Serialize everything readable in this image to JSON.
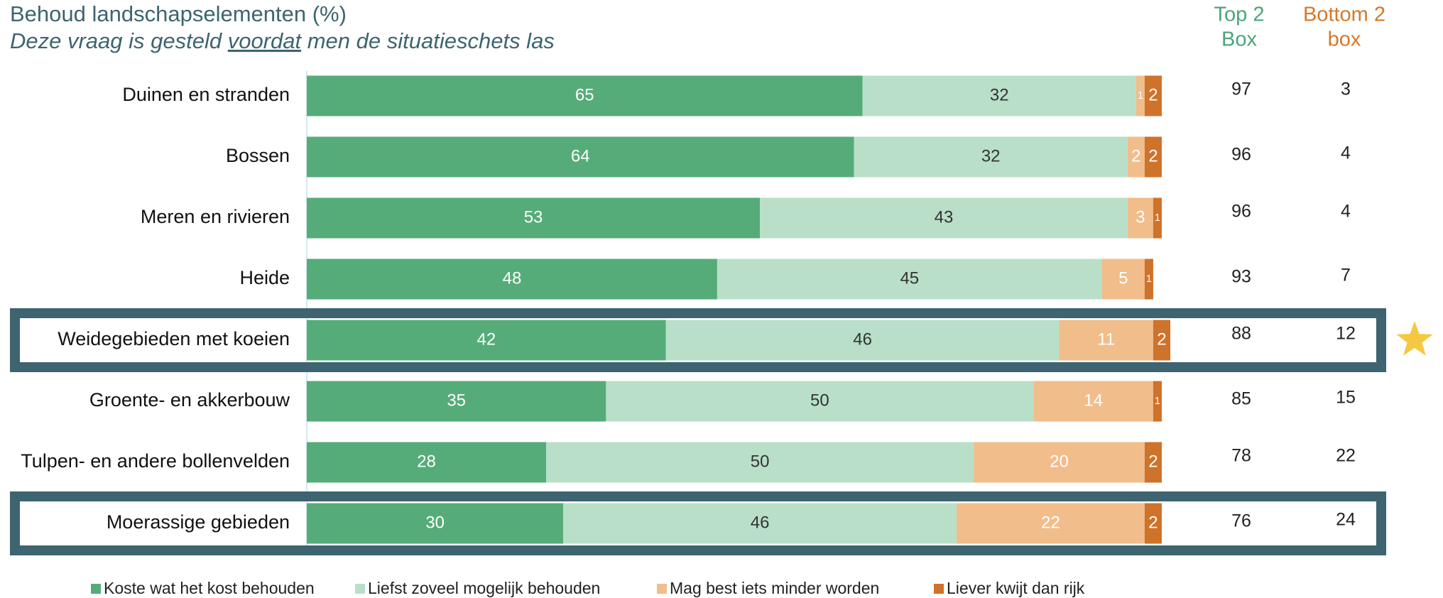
{
  "chart_data": {
    "type": "stacked_bar_horizontal",
    "title": "Behoud landschapselementen (%)",
    "subtitle": [
      "Deze vraag is gesteld ",
      "voordat",
      " men de situatieschets las"
    ],
    "categories": [
      "Duinen en stranden",
      "Bossen",
      "Meren en rivieren",
      "Heide",
      "Weidegebieden met koeien",
      "Groente- en akkerbouw",
      "Tulpen- en andere bollenvelden",
      "Moerassige gebieden"
    ],
    "series": [
      {
        "name": "Koste wat het kost behouden",
        "color": "#55ac78",
        "label_color": "#ffffff",
        "values": [
          65,
          64,
          53,
          48,
          42,
          35,
          28,
          30
        ]
      },
      {
        "name": "Liefst zoveel mogelijk behouden",
        "color": "#b9dfc8",
        "label_color": "#333333",
        "values": [
          32,
          32,
          43,
          45,
          46,
          50,
          50,
          46
        ]
      },
      {
        "name": "Mag best iets minder worden",
        "color": "#f1bd8b",
        "label_color": "#ffffff",
        "values": [
          1,
          2,
          3,
          5,
          11,
          14,
          20,
          22
        ]
      },
      {
        "name": "Liever kwijt dan rijk",
        "color": "#cf722a",
        "label_color": "#ffffff",
        "values": [
          2,
          2,
          1,
          1,
          2,
          1,
          2,
          2
        ]
      }
    ],
    "top2": {
      "header": [
        "Top 2",
        "Box"
      ],
      "color": "#4aa57a",
      "values": [
        97,
        96,
        96,
        93,
        88,
        85,
        78,
        76
      ]
    },
    "bottom2": {
      "header": [
        "Bottom 2",
        "box"
      ],
      "color": "#d4782a",
      "values": [
        3,
        4,
        4,
        7,
        12,
        15,
        22,
        24
      ]
    },
    "highlighted": [
      4,
      7
    ],
    "highlight_color": "#3d6470",
    "star_row": 4
  }
}
